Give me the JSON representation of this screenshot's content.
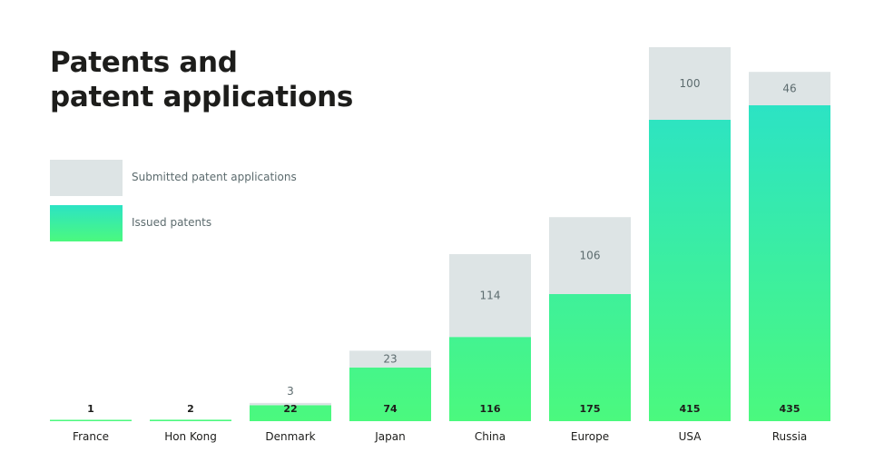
{
  "title_lines": [
    "Patents and",
    "patent applications"
  ],
  "legend": {
    "submitted": "Submitted patent applications",
    "issued": "Issued patents"
  },
  "colors": {
    "submitted": "#dde4e5",
    "issued_top": "#2ce3c4",
    "issued_bottom": "#4bf97e"
  },
  "chart_data": {
    "type": "bar",
    "stacked": true,
    "categories": [
      "France",
      "Hon Kong",
      "Denmark",
      "Japan",
      "China",
      "Europe",
      "USA",
      "Russia"
    ],
    "series": [
      {
        "name": "Issued patents",
        "values": [
          1,
          2,
          22,
          74,
          116,
          175,
          415,
          435
        ]
      },
      {
        "name": "Submitted patent applications",
        "values": [
          null,
          null,
          3,
          23,
          114,
          106,
          100,
          46
        ]
      }
    ],
    "title": "Patents and patent applications",
    "legend_position": "top-left",
    "grid": false
  }
}
